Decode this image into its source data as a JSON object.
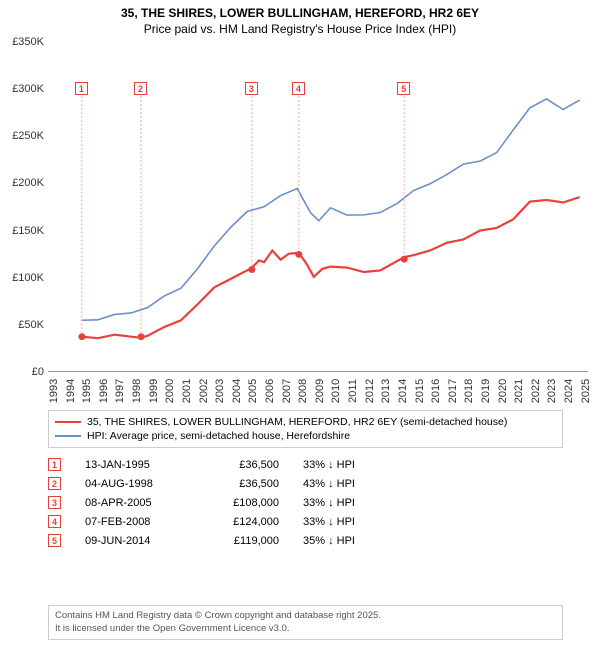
{
  "title_line1": "35, THE SHIRES, LOWER BULLINGHAM, HEREFORD, HR2 6EY",
  "title_line2": "Price paid vs. HM Land Registry's House Price Index (HPI)",
  "chart": {
    "type": "line",
    "background_color": "#ffffff",
    "ylim": [
      0,
      350000
    ],
    "y_ticks": [
      0,
      50000,
      100000,
      150000,
      200000,
      250000,
      300000,
      350000
    ],
    "y_tick_labels": [
      "£0",
      "£50K",
      "£100K",
      "£150K",
      "£200K",
      "£250K",
      "£300K",
      "£350K"
    ],
    "xlim": [
      1993,
      2025.5
    ],
    "x_ticks": [
      1993,
      1994,
      1995,
      1996,
      1997,
      1998,
      1999,
      2000,
      2001,
      2002,
      2003,
      2004,
      2005,
      2006,
      2007,
      2008,
      2009,
      2010,
      2011,
      2012,
      2013,
      2014,
      2015,
      2016,
      2017,
      2018,
      2019,
      2020,
      2021,
      2022,
      2023,
      2024,
      2025
    ],
    "series_red": {
      "color": "#e8403a",
      "width": 2.2,
      "label": "35, THE SHIRES, LOWER BULLINGHAM, HEREFORD, HR2 6EY (semi-detached house)",
      "points": [
        [
          1995.04,
          36500
        ],
        [
          1996,
          36500
        ],
        [
          1997,
          36500
        ],
        [
          1998.6,
          36500
        ],
        [
          1999,
          38000
        ],
        [
          2000,
          45000
        ],
        [
          2001,
          56000
        ],
        [
          2002,
          70000
        ],
        [
          2003,
          88000
        ],
        [
          2004,
          100000
        ],
        [
          2005.27,
          108000
        ],
        [
          2005.7,
          118000
        ],
        [
          2006,
          117000
        ],
        [
          2006.5,
          126000
        ],
        [
          2007,
          120000
        ],
        [
          2007.5,
          125000
        ],
        [
          2008.1,
          124000
        ],
        [
          2008.6,
          115000
        ],
        [
          2009,
          99000
        ],
        [
          2009.5,
          108000
        ],
        [
          2010,
          113000
        ],
        [
          2011,
          108000
        ],
        [
          2012,
          106000
        ],
        [
          2013,
          108000
        ],
        [
          2014.44,
          119000
        ],
        [
          2015,
          125000
        ],
        [
          2016,
          128000
        ],
        [
          2017,
          135000
        ],
        [
          2018,
          142000
        ],
        [
          2019,
          148000
        ],
        [
          2020,
          152000
        ],
        [
          2021,
          163000
        ],
        [
          2022,
          178000
        ],
        [
          2023,
          183000
        ],
        [
          2024,
          180000
        ],
        [
          2025,
          183000
        ]
      ],
      "markers": [
        {
          "n": "1",
          "x": 1995.04,
          "y": 36500
        },
        {
          "n": "2",
          "x": 1998.6,
          "y": 36500
        },
        {
          "n": "3",
          "x": 2005.27,
          "y": 108000
        },
        {
          "n": "4",
          "x": 2008.1,
          "y": 124000
        },
        {
          "n": "5",
          "x": 2014.44,
          "y": 119000
        }
      ]
    },
    "series_blue": {
      "color": "#6b8fc9",
      "width": 1.6,
      "label": "HPI: Average price, semi-detached house, Herefordshire",
      "points": [
        [
          1995,
          54000
        ],
        [
          1996,
          56000
        ],
        [
          1997,
          58000
        ],
        [
          1998,
          63000
        ],
        [
          1999,
          68000
        ],
        [
          2000,
          78000
        ],
        [
          2001,
          90000
        ],
        [
          2002,
          108000
        ],
        [
          2003,
          132000
        ],
        [
          2004,
          155000
        ],
        [
          2005,
          168000
        ],
        [
          2006,
          175000
        ],
        [
          2007,
          188000
        ],
        [
          2008,
          192000
        ],
        [
          2008.8,
          170000
        ],
        [
          2009.3,
          160000
        ],
        [
          2010,
          172000
        ],
        [
          2011,
          168000
        ],
        [
          2012,
          165000
        ],
        [
          2013,
          168000
        ],
        [
          2014,
          180000
        ],
        [
          2015,
          190000
        ],
        [
          2016,
          200000
        ],
        [
          2017,
          210000
        ],
        [
          2018,
          218000
        ],
        [
          2019,
          225000
        ],
        [
          2020,
          232000
        ],
        [
          2021,
          255000
        ],
        [
          2022,
          282000
        ],
        [
          2023,
          288000
        ],
        [
          2024,
          278000
        ],
        [
          2025,
          290000
        ]
      ]
    },
    "marker_annotations_top_y": 300000
  },
  "legend_title": "",
  "transactions": [
    {
      "n": "1",
      "date": "13-JAN-1995",
      "price": "£36,500",
      "pct": "33% ↓ HPI"
    },
    {
      "n": "2",
      "date": "04-AUG-1998",
      "price": "£36,500",
      "pct": "43% ↓ HPI"
    },
    {
      "n": "3",
      "date": "08-APR-2005",
      "price": "£108,000",
      "pct": "33% ↓ HPI"
    },
    {
      "n": "4",
      "date": "07-FEB-2008",
      "price": "£124,000",
      "pct": "33% ↓ HPI"
    },
    {
      "n": "5",
      "date": "09-JUN-2014",
      "price": "£119,000",
      "pct": "35% ↓ HPI"
    }
  ],
  "footer_line1": "Contains HM Land Registry data © Crown copyright and database right 2025.",
  "footer_line2": "It is licensed under the Open Government Licence v3.0."
}
